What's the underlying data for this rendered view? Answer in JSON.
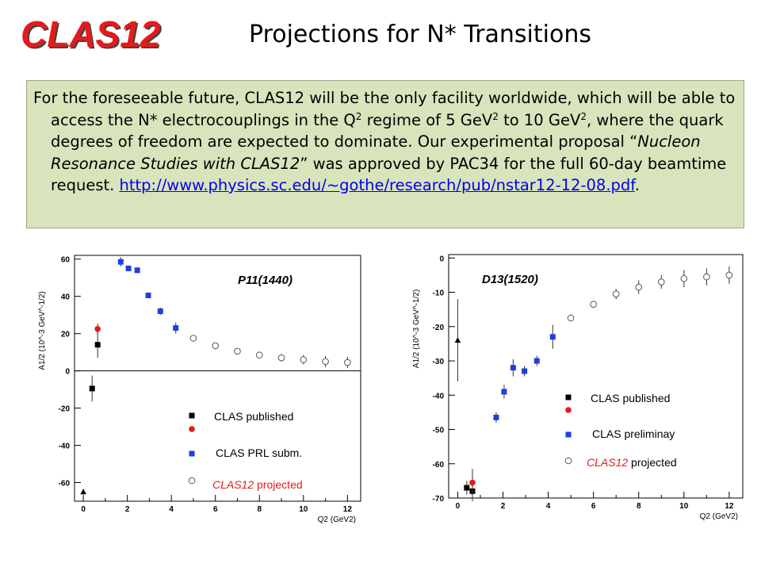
{
  "header": {
    "logo": "CLAS12",
    "title": "Projections for N* Transitions"
  },
  "intro": {
    "p1": "For the foreseeable future, CLAS12 will be the only facility worldwide, which will be able to access the N* electrocouplings in the Q",
    "sup1": "2",
    "p2": " regime of 5 GeV",
    "sup2": "2",
    "p3": " to 10 GeV",
    "sup3": "2",
    "p4": ", where the quark degrees of freedom are expected to dominate. Our experimental proposal “",
    "italic": "Nucleon Resonance Studies with CLAS12",
    "p5": "” was approved by PAC34 for the full 60-day beamtime request. ",
    "link": "http://www.physics.sc.edu/~gothe/research/pub/nstar12-12-08.pdf",
    "p6": "."
  },
  "colors": {
    "logo": "#e8191a",
    "box": "#d8e4bc",
    "published": "#000000",
    "prl": "#e31a1c",
    "preliminary": "#1f3fe0",
    "projected": "#555555",
    "link": "#0000ee"
  },
  "chart_data": [
    {
      "type": "scatter",
      "title": "P11(1440)",
      "ylabel": "A1/2 (10^-3 GeV^-1/2)",
      "xlabel": "Q2 (GeV2)",
      "xlim": [
        -0.4,
        12.6
      ],
      "ylim": [
        -70,
        62
      ],
      "xticks": [
        0,
        2,
        4,
        6,
        8,
        10,
        12
      ],
      "yticks": [
        -60,
        -40,
        -20,
        0,
        20,
        40,
        60
      ],
      "zero_line": true,
      "series": [
        {
          "name": "CLAS published",
          "marker": "square",
          "color": "#000000",
          "points": [
            {
              "x": 0.4,
              "y": -9.5,
              "err": 7
            },
            {
              "x": 0.65,
              "y": 14,
              "err": 7
            }
          ]
        },
        {
          "name": "CLAS PRL subm.",
          "marker": "circle",
          "color": "#e31a1c",
          "points": [
            {
              "x": 0.65,
              "y": 22.5,
              "err": 3
            }
          ]
        },
        {
          "name": "",
          "marker": "square",
          "color": "#1f3fe0",
          "points": [
            {
              "x": 1.7,
              "y": 58.5,
              "err": 2.5
            },
            {
              "x": 2.05,
              "y": 55,
              "err": 1.5
            },
            {
              "x": 2.45,
              "y": 54,
              "err": 1.5
            },
            {
              "x": 2.95,
              "y": 40.5,
              "err": 1.5
            },
            {
              "x": 3.5,
              "y": 32,
              "err": 2
            },
            {
              "x": 4.2,
              "y": 23,
              "err": 3
            }
          ]
        },
        {
          "name": "CLAS12 projected",
          "marker": "open-circle",
          "color": "#555555",
          "points": [
            {
              "x": 5,
              "y": 17.5,
              "err": 1
            },
            {
              "x": 6,
              "y": 13.5,
              "err": 1
            },
            {
              "x": 7,
              "y": 10.5,
              "err": 1.5
            },
            {
              "x": 8,
              "y": 8.5,
              "err": 1.5
            },
            {
              "x": 9,
              "y": 7,
              "err": 2
            },
            {
              "x": 10,
              "y": 6,
              "err": 2.5
            },
            {
              "x": 11,
              "y": 5,
              "err": 3
            },
            {
              "x": 12,
              "y": 4.5,
              "err": 3
            }
          ]
        },
        {
          "name": "",
          "marker": "triangle",
          "color": "#000000",
          "points": [
            {
              "x": 0,
              "y": -65,
              "err": 0
            }
          ]
        }
      ],
      "legend": [
        {
          "text": "CLAS published",
          "marker": "square",
          "color": "#000000",
          "italic_prefix": ""
        },
        {
          "text": "CLAS PRL subm.",
          "marker": "circle",
          "color": "#e31a1c",
          "italic_prefix": ""
        },
        {
          "text": "projected",
          "marker": "open-circle",
          "color": "#555555",
          "italic_prefix": "CLAS12"
        }
      ]
    },
    {
      "type": "scatter",
      "title": "D13(1520)",
      "ylabel": "A1/2 (10^-3 GeV^-1/2)",
      "xlabel": "Q2 (GeV2)",
      "xlim": [
        -0.4,
        12.6
      ],
      "ylim": [
        -70,
        1
      ],
      "xticks": [
        0,
        2,
        4,
        6,
        8,
        10,
        12
      ],
      "yticks": [
        -70,
        -60,
        -50,
        -40,
        -30,
        -20,
        -10,
        0
      ],
      "zero_line": false,
      "series": [
        {
          "name": "CLAS published",
          "marker": "square",
          "color": "#000000",
          "points": [
            {
              "x": 0.4,
              "y": -67,
              "err": 2
            },
            {
              "x": 0.65,
              "y": -68,
              "err": 3
            }
          ]
        },
        {
          "name": "",
          "marker": "circle",
          "color": "#e31a1c",
          "points": [
            {
              "x": 0.65,
              "y": -65.5,
              "err": 4
            }
          ]
        },
        {
          "name": "CLAS preliminay",
          "marker": "square",
          "color": "#1f3fe0",
          "points": [
            {
              "x": 1.7,
              "y": -46.5,
              "err": 1.5
            },
            {
              "x": 2.05,
              "y": -39,
              "err": 2
            },
            {
              "x": 2.45,
              "y": -32,
              "err": 2.5
            },
            {
              "x": 2.95,
              "y": -33,
              "err": 1.5
            },
            {
              "x": 3.5,
              "y": -30,
              "err": 1.5
            },
            {
              "x": 4.2,
              "y": -23,
              "err": 3.5
            }
          ]
        },
        {
          "name": "CLAS12 projected",
          "marker": "open-circle",
          "color": "#555555",
          "points": [
            {
              "x": 5,
              "y": -17.5,
              "err": 1
            },
            {
              "x": 6,
              "y": -13.5,
              "err": 1
            },
            {
              "x": 7,
              "y": -10.5,
              "err": 1.5
            },
            {
              "x": 8,
              "y": -8.5,
              "err": 2
            },
            {
              "x": 9,
              "y": -7,
              "err": 2
            },
            {
              "x": 10,
              "y": -6,
              "err": 2.5
            },
            {
              "x": 11,
              "y": -5.5,
              "err": 2.5
            },
            {
              "x": 12,
              "y": -5,
              "err": 2.5
            }
          ]
        },
        {
          "name": "",
          "marker": "triangle",
          "color": "#000000",
          "points": [
            {
              "x": 0,
              "y": -24,
              "err": 12
            }
          ]
        }
      ],
      "legend": [
        {
          "text": "CLAS published",
          "marker": "square+circle",
          "color": "#000000",
          "italic_prefix": ""
        },
        {
          "text": "CLAS preliminay",
          "marker": "square",
          "color": "#1f3fe0",
          "italic_prefix": ""
        },
        {
          "text": "projected",
          "marker": "open-circle",
          "color": "#555555",
          "italic_prefix": "CLAS12"
        }
      ]
    }
  ]
}
